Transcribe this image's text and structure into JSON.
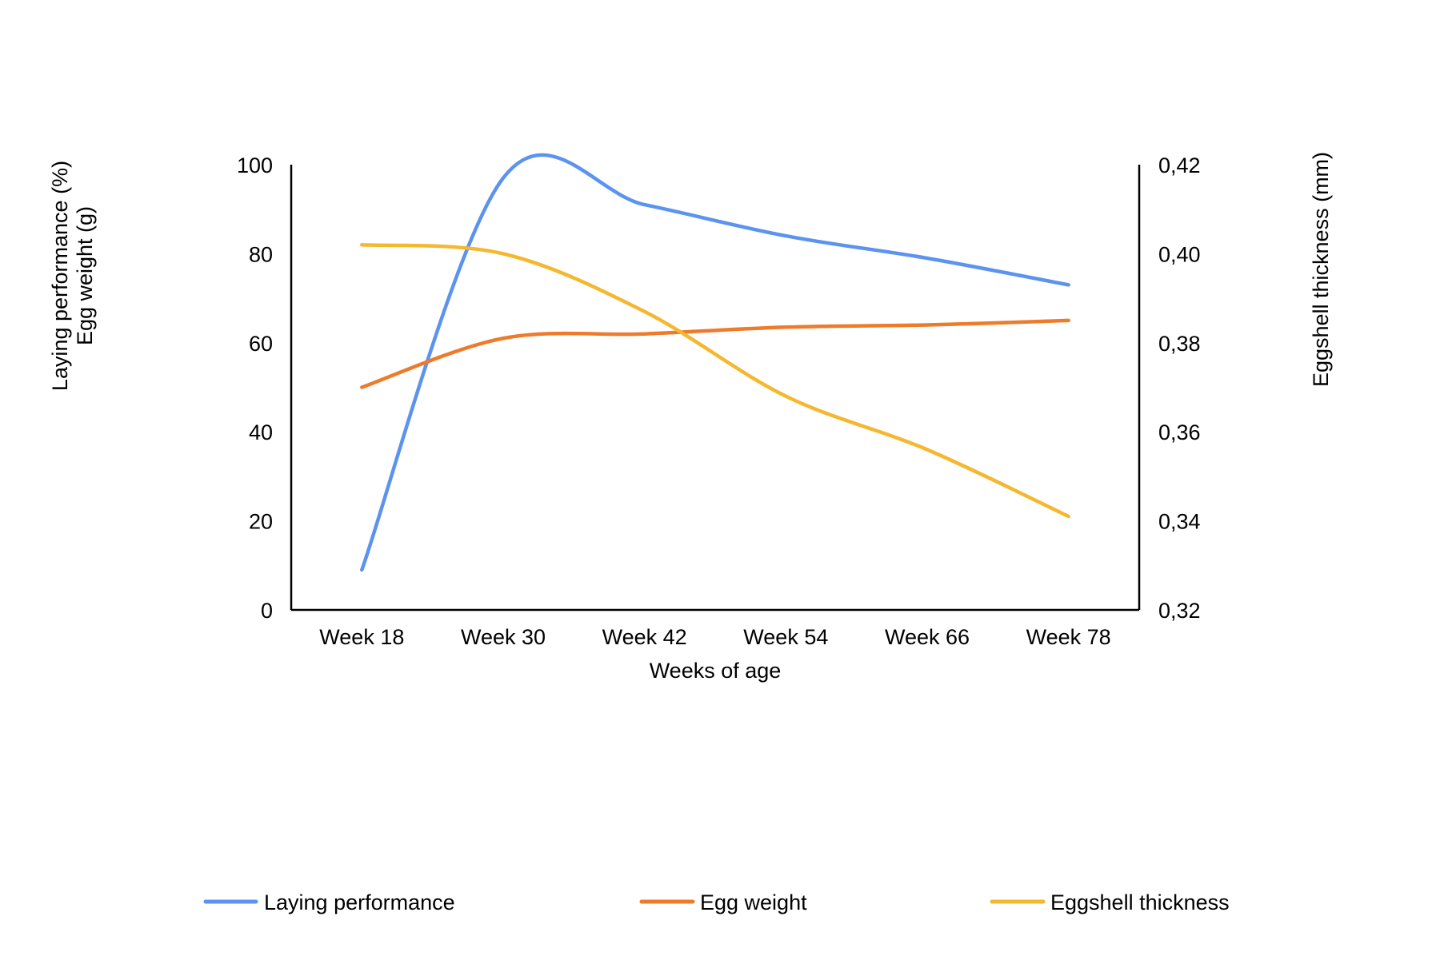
{
  "chart_data": {
    "type": "line",
    "categories": [
      "Week 18",
      "Week 30",
      "Week 42",
      "Week 54",
      "Week 66",
      "Week 78"
    ],
    "series": [
      {
        "name": "Laying performance",
        "axis": "left",
        "color": "#5b93ef",
        "values": [
          9,
          97,
          91,
          84,
          79,
          73
        ]
      },
      {
        "name": "Egg weight",
        "axis": "left",
        "color": "#ee7a2b",
        "values": [
          50,
          61,
          62,
          63.5,
          64,
          65
        ]
      },
      {
        "name": "Eggshell thickness",
        "axis": "right",
        "color": "#f4b730",
        "values": [
          0.402,
          0.4,
          0.387,
          0.368,
          0.356,
          0.341
        ]
      }
    ],
    "xlabel": "Weeks of age",
    "ylabel_left_lines": [
      "Laying performance (%)",
      "Egg weight (g)"
    ],
    "ylabel_right": "Eggshell thickness (mm)",
    "ylim_left": [
      0,
      100
    ],
    "ylim_right": [
      0.32,
      0.42
    ],
    "yticks_left": [
      "0",
      "20",
      "40",
      "60",
      "80",
      "100"
    ],
    "yticks_right": [
      "0,32",
      "0,34",
      "0,36",
      "0,38",
      "0,40",
      "0,42"
    ],
    "grid": false,
    "legend_position": "bottom"
  }
}
